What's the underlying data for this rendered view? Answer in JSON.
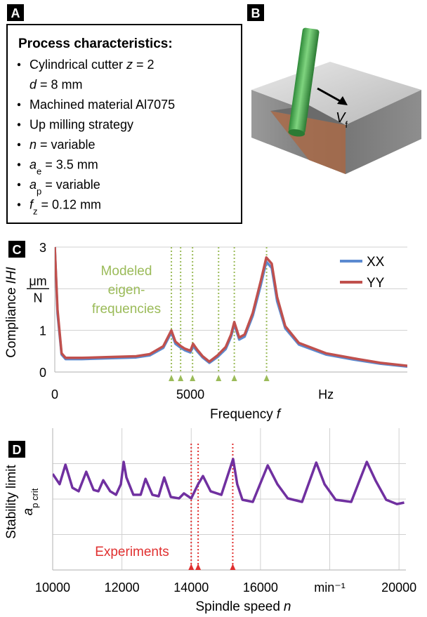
{
  "panel_a": {
    "label": "A",
    "title": "Process characteristics:",
    "items": [
      {
        "lines": [
          [
            {
              "t": "Cylindrical cutter",
              "style": "normal"
            },
            {
              "t": "z",
              "style": "italic"
            },
            {
              "t": "= 2",
              "style": "normal"
            }
          ],
          [
            {
              "t": "d",
              "style": "italic"
            },
            {
              "t": "= 8 mm",
              "style": "normal"
            }
          ]
        ]
      },
      {
        "lines": [
          [
            {
              "t": "Machined material Al7075",
              "style": "normal"
            }
          ]
        ]
      },
      {
        "lines": [
          [
            {
              "t": "Up milling strategy",
              "style": "normal"
            }
          ]
        ]
      },
      {
        "lines": [
          [
            {
              "t": "n",
              "style": "italic"
            },
            {
              "t": "= variable",
              "style": "normal"
            }
          ]
        ]
      },
      {
        "lines": [
          [
            {
              "t": "a",
              "style": "italic"
            },
            {
              "t": "e",
              "style": "sub"
            },
            {
              "t": "= 3.5 mm",
              "style": "normal"
            }
          ]
        ]
      },
      {
        "lines": [
          [
            {
              "t": "a",
              "style": "italic"
            },
            {
              "t": "p",
              "style": "sub"
            },
            {
              "t": "= variable",
              "style": "normal"
            }
          ]
        ]
      },
      {
        "lines": [
          [
            {
              "t": "f",
              "style": "italic"
            },
            {
              "t": "z",
              "style": "sub"
            },
            {
              "t": "= 0.12 mm",
              "style": "normal"
            }
          ]
        ]
      }
    ]
  },
  "panel_b": {
    "label": "B",
    "feed_symbol": "V",
    "feed_subscript": "f"
  },
  "chart_data": [
    {
      "type": "line",
      "panel_label": "C",
      "ylabel": {
        "text": "Compliance",
        "symbol": "IHI"
      },
      "xlabel": {
        "text": "Frequency",
        "symbol": "f"
      },
      "y_unit": {
        "numerator": "μm",
        "denominator": "N"
      },
      "xlim": [
        0,
        13000
      ],
      "ylim": [
        0,
        3
      ],
      "xticks": [
        0,
        5000,
        {
          "value": 10000,
          "label": "Hz"
        }
      ],
      "yticks": [
        0,
        1,
        3
      ],
      "ygrid": [
        1,
        2,
        3
      ],
      "legend": "top-right",
      "x": [
        0,
        100,
        250,
        400,
        1000,
        2000,
        3000,
        3500,
        4000,
        4300,
        4450,
        4650,
        4800,
        5000,
        5100,
        5250,
        5450,
        5700,
        6000,
        6300,
        6500,
        6620,
        6800,
        7000,
        7300,
        7600,
        7800,
        8000,
        8200,
        8500,
        9000,
        10000,
        11000,
        12000,
        13000
      ],
      "series": [
        {
          "name": "XX",
          "color": "#5b8ad0",
          "values": [
            3.0,
            1.4,
            0.42,
            0.31,
            0.31,
            0.33,
            0.35,
            0.4,
            0.58,
            0.95,
            0.68,
            0.58,
            0.52,
            0.47,
            0.62,
            0.5,
            0.35,
            0.22,
            0.36,
            0.55,
            0.85,
            1.15,
            0.78,
            0.85,
            1.35,
            2.1,
            2.65,
            2.5,
            1.7,
            1.05,
            0.66,
            0.42,
            0.3,
            0.2,
            0.13
          ]
        },
        {
          "name": "YY",
          "color": "#c0504d",
          "values": [
            3.0,
            1.5,
            0.45,
            0.34,
            0.34,
            0.36,
            0.38,
            0.43,
            0.62,
            1.0,
            0.73,
            0.62,
            0.56,
            0.51,
            0.68,
            0.54,
            0.38,
            0.25,
            0.4,
            0.6,
            0.9,
            1.2,
            0.83,
            0.9,
            1.42,
            2.2,
            2.75,
            2.6,
            1.8,
            1.1,
            0.7,
            0.45,
            0.33,
            0.22,
            0.15
          ]
        }
      ],
      "markers": {
        "label": [
          "Modeled",
          "eigen-",
          "frequencies"
        ],
        "color": "#9bbb59",
        "x": [
          4300,
          4640,
          5080,
          6040,
          6620,
          7810
        ]
      }
    },
    {
      "type": "line",
      "panel_label": "D",
      "ylabel": {
        "text": "Stability limit",
        "symbol": "a",
        "subscript": "p crit"
      },
      "xlabel": {
        "text": "Spindle speed",
        "symbol": "n"
      },
      "xlim": [
        10000,
        20200
      ],
      "ylim": [
        0,
        4
      ],
      "xticks": [
        10000,
        12000,
        14000,
        16000,
        {
          "value": 18000,
          "label": "min⁻¹"
        },
        20000
      ],
      "yticks": [],
      "ygrid": [
        1,
        2,
        3
      ],
      "xgrid": true,
      "x": [
        10000,
        10200,
        10370,
        10570,
        10750,
        10970,
        11180,
        11320,
        11460,
        11660,
        11830,
        11970,
        12050,
        12130,
        12330,
        12540,
        12680,
        12880,
        13060,
        13220,
        13410,
        13650,
        13790,
        14000,
        14200,
        14340,
        14560,
        14870,
        15210,
        15330,
        15480,
        15780,
        16210,
        16490,
        16790,
        17200,
        17610,
        17850,
        18170,
        18620,
        19070,
        19330,
        19630,
        19940,
        20150
      ],
      "series": [
        {
          "color": "#7030a0",
          "values": [
            2.71,
            2.42,
            2.97,
            2.32,
            2.22,
            2.77,
            2.26,
            2.22,
            2.53,
            2.22,
            2.12,
            2.42,
            3.05,
            2.61,
            2.12,
            2.12,
            2.57,
            2.12,
            2.08,
            2.61,
            2.06,
            2.02,
            2.16,
            2.02,
            2.42,
            2.65,
            2.22,
            2.12,
            3.13,
            2.42,
            1.98,
            1.92,
            2.95,
            2.42,
            2.02,
            1.92,
            3.03,
            2.42,
            1.98,
            1.92,
            3.05,
            2.51,
            1.98,
            1.86,
            1.9
          ]
        }
      ],
      "markers": {
        "label": [
          "Experiments"
        ],
        "color": "#e03030",
        "x": [
          14000,
          14200,
          15200
        ]
      }
    }
  ]
}
